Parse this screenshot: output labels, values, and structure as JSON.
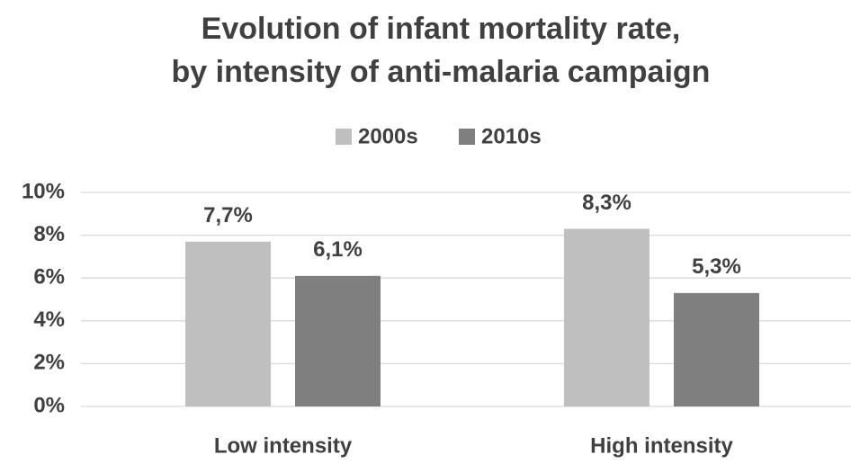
{
  "chart_data": {
    "type": "bar",
    "title": [
      "Evolution of infant mortality rate,",
      "by intensity of anti-malaria campaign"
    ],
    "categories": [
      "Low intensity",
      "High intensity"
    ],
    "series": [
      {
        "name": "2000s",
        "color": "#bfbfbf",
        "values": [
          7.7,
          8.3
        ],
        "value_labels": [
          "7,7%",
          "8,3%"
        ]
      },
      {
        "name": "2010s",
        "color": "#7f7f7f",
        "values": [
          6.1,
          5.3
        ],
        "value_labels": [
          "6,1%",
          "5,3%"
        ]
      }
    ],
    "ylim": [
      0,
      10
    ],
    "yticks": [
      {
        "value": 0,
        "label": "0%"
      },
      {
        "value": 2,
        "label": "2%"
      },
      {
        "value": 4,
        "label": "4%"
      },
      {
        "value": 6,
        "label": "6%"
      },
      {
        "value": 8,
        "label": "8%"
      },
      {
        "value": 10,
        "label": "10%"
      }
    ],
    "grid": true,
    "legend": "top"
  }
}
